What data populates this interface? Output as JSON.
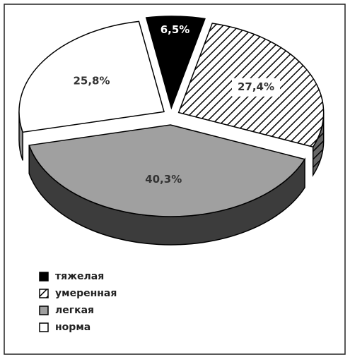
{
  "chart_data": {
    "type": "pie",
    "categories": [
      "тяжелая",
      "умеренная",
      "легкая",
      "норма"
    ],
    "values": [
      6.5,
      27.4,
      40.3,
      25.8
    ],
    "value_labels": [
      "6,5%",
      "27,4%",
      "40,3%",
      "25,8%"
    ],
    "colors": [
      "#000000",
      "#ffffff",
      "#a0a0a0",
      "#ffffff"
    ],
    "hatch": [
      false,
      true,
      false,
      false
    ],
    "legend": "bottom-left"
  }
}
